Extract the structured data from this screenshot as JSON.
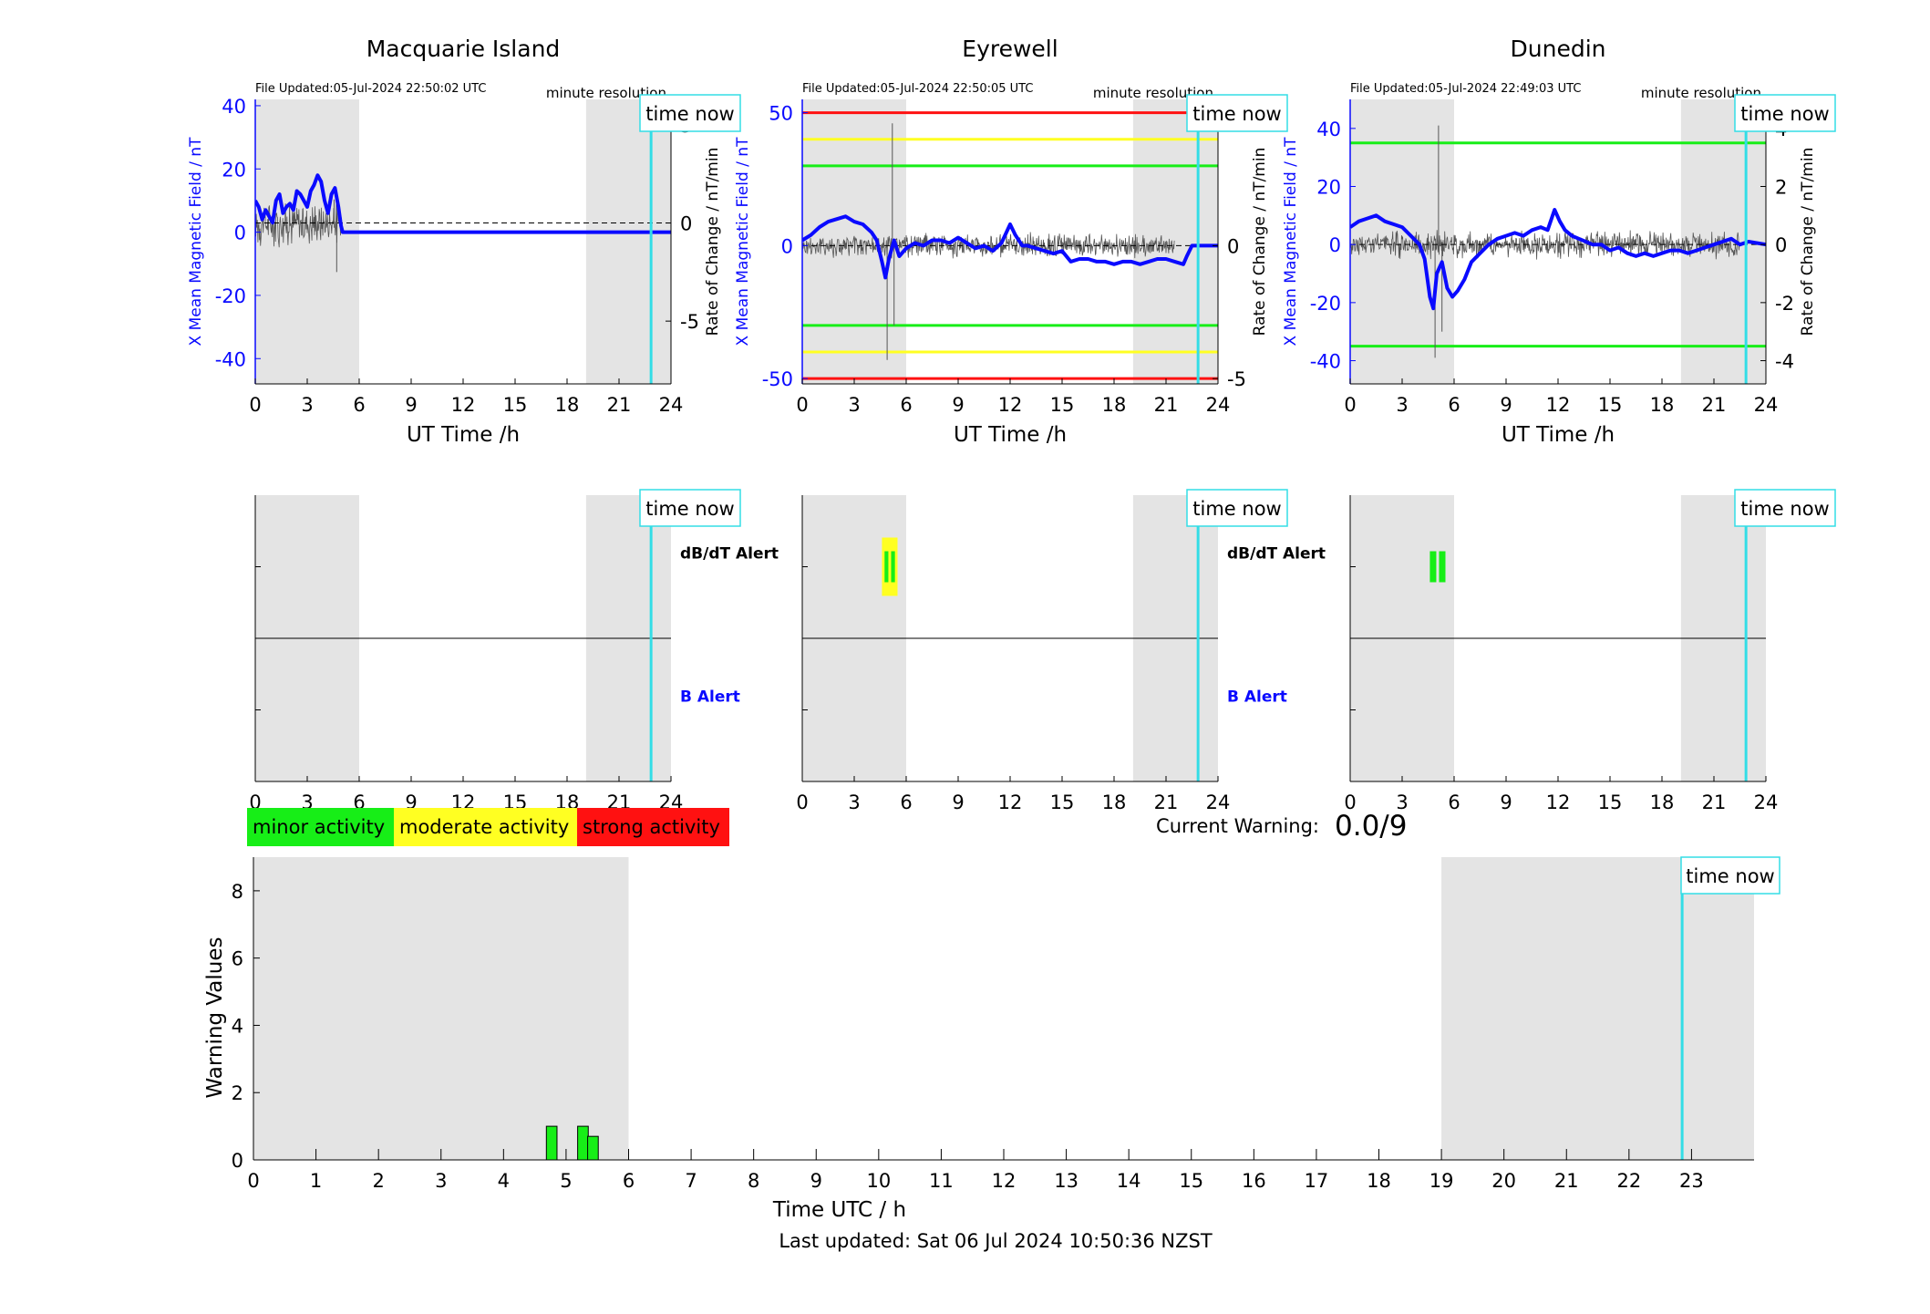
{
  "colors": {
    "x_field": "#0a0aff",
    "rate": "#555555",
    "night": "#e4e4e4",
    "time_now": "#33dde6",
    "minor": "#17ee17",
    "moderate": "#ffff22",
    "strong": "#ff1111",
    "b_alert_label": "#0a0aff"
  },
  "icons": [],
  "stations": [
    {
      "name": "Macquarie Island",
      "file_updated": "File Updated:05-Jul-2024 22:50:02 UTC",
      "resolution": "minute resolution",
      "time_now_label": "time now",
      "xlabel": "UT Time /h",
      "ylabel_left": "X Mean Magnetic Field / nT",
      "ylabel_right": "Rate of Change / nT/min",
      "ylim_left": [
        -48,
        42
      ],
      "ylim_right": [
        -8.2,
        6.3
      ],
      "yticks_left": [
        "-40",
        "-20",
        "0",
        "20",
        "40"
      ],
      "yticks_right": [
        "-5",
        "0",
        "5"
      ],
      "xticks": [
        "0",
        "3",
        "6",
        "9",
        "12",
        "15",
        "18",
        "21",
        "24"
      ],
      "night_bands": [
        [
          0,
          6
        ],
        [
          19.1,
          24
        ]
      ],
      "time_now_h": 22.85,
      "threshold_lines": [],
      "x_field_trace": [
        [
          0,
          10
        ],
        [
          0.2,
          8
        ],
        [
          0.4,
          4
        ],
        [
          0.6,
          7
        ],
        [
          0.8,
          5
        ],
        [
          1.0,
          3
        ],
        [
          1.2,
          10
        ],
        [
          1.4,
          12
        ],
        [
          1.6,
          6
        ],
        [
          1.8,
          8
        ],
        [
          2.0,
          9
        ],
        [
          2.2,
          7
        ],
        [
          2.4,
          13
        ],
        [
          2.6,
          12
        ],
        [
          2.8,
          10
        ],
        [
          3.0,
          8
        ],
        [
          3.2,
          13
        ],
        [
          3.4,
          15
        ],
        [
          3.6,
          18
        ],
        [
          3.8,
          16
        ],
        [
          4.0,
          10
        ],
        [
          4.2,
          6
        ],
        [
          4.4,
          12
        ],
        [
          4.6,
          14
        ],
        [
          4.8,
          8
        ],
        [
          4.95,
          2
        ],
        [
          5.05,
          0
        ],
        [
          24,
          0
        ]
      ],
      "rate_noise_amp": 0.9,
      "rate_noise_range": [
        0,
        5
      ],
      "rate_spikes": [
        [
          4.7,
          -2.5
        ],
        [
          4.55,
          1.2
        ]
      ],
      "alert_upper_label": "dB/dT Alert",
      "alert_lower_label": "B Alert",
      "alert_blocks": []
    },
    {
      "name": "Eyrewell",
      "file_updated": "File Updated:05-Jul-2024 22:50:05 UTC",
      "resolution": "minute resolution",
      "time_now_label": "time now",
      "xlabel": "UT Time /h",
      "ylabel_left": "X Mean Magnetic Field / nT",
      "ylabel_right": "Rate of Change / nT/min",
      "ylim_left": [
        -52,
        55
      ],
      "ylim_right": [
        -5.2,
        5.5
      ],
      "yticks_left": [
        "-50",
        "0",
        "50"
      ],
      "yticks_right": [
        "-5",
        "0",
        "5"
      ],
      "xticks": [
        "0",
        "3",
        "6",
        "9",
        "12",
        "15",
        "18",
        "21",
        "24"
      ],
      "night_bands": [
        [
          0,
          6
        ],
        [
          19.1,
          24
        ]
      ],
      "time_now_h": 22.85,
      "threshold_lines": [
        {
          "level": "strong",
          "value": 50
        },
        {
          "level": "moderate",
          "value": 40
        },
        {
          "level": "minor",
          "value": 30
        },
        {
          "level": "minor",
          "value": -30
        },
        {
          "level": "moderate",
          "value": -40
        },
        {
          "level": "strong",
          "value": -50
        }
      ],
      "x_field_trace": [
        [
          0,
          2
        ],
        [
          0.5,
          4
        ],
        [
          1.0,
          7
        ],
        [
          1.5,
          9
        ],
        [
          2.0,
          10
        ],
        [
          2.5,
          11
        ],
        [
          3.0,
          9
        ],
        [
          3.5,
          8
        ],
        [
          4.0,
          5
        ],
        [
          4.3,
          2
        ],
        [
          4.6,
          -6
        ],
        [
          4.8,
          -12
        ],
        [
          5.0,
          -5
        ],
        [
          5.3,
          2
        ],
        [
          5.6,
          -4
        ],
        [
          6.0,
          -1
        ],
        [
          6.5,
          1
        ],
        [
          7.0,
          0
        ],
        [
          7.5,
          2
        ],
        [
          8.0,
          2
        ],
        [
          8.5,
          1
        ],
        [
          9.0,
          3
        ],
        [
          9.5,
          1
        ],
        [
          10.0,
          -1
        ],
        [
          10.5,
          0
        ],
        [
          11.0,
          -2
        ],
        [
          11.5,
          1
        ],
        [
          12.0,
          8
        ],
        [
          12.3,
          4
        ],
        [
          12.7,
          0
        ],
        [
          13.0,
          0
        ],
        [
          13.5,
          -1
        ],
        [
          14.0,
          -2
        ],
        [
          14.5,
          -3
        ],
        [
          15.0,
          -2
        ],
        [
          15.5,
          -6
        ],
        [
          16.0,
          -5
        ],
        [
          16.5,
          -5
        ],
        [
          17.0,
          -6
        ],
        [
          17.5,
          -6
        ],
        [
          18.0,
          -7
        ],
        [
          18.5,
          -6
        ],
        [
          19.0,
          -6
        ],
        [
          19.5,
          -7
        ],
        [
          20.0,
          -6
        ],
        [
          20.5,
          -5
        ],
        [
          21.0,
          -5
        ],
        [
          21.5,
          -6
        ],
        [
          22.0,
          -7
        ],
        [
          22.2,
          -4
        ],
        [
          22.5,
          0
        ],
        [
          24,
          0
        ]
      ],
      "rate_noise_amp": 0.35,
      "rate_noise_range": [
        0,
        21.5
      ],
      "rate_spikes": [
        [
          5.2,
          4.6
        ],
        [
          4.9,
          -4.3
        ],
        [
          5.3,
          -3.0
        ]
      ],
      "alert_upper_label": "dB/dT Alert",
      "alert_lower_label": "B Alert",
      "alert_blocks": [
        {
          "start_h": 4.6,
          "end_h": 5.5,
          "level": "moderate",
          "band": "upper"
        },
        {
          "start_h": 4.75,
          "end_h": 5.35,
          "level": "minor",
          "band": "upper"
        }
      ]
    },
    {
      "name": "Dunedin",
      "file_updated": "File Updated:05-Jul-2024 22:49:03 UTC",
      "resolution": "minute resolution",
      "time_now_label": "time now",
      "xlabel": "UT Time /h",
      "ylabel_left": "X Mean Magnetic Field / nT",
      "ylabel_right": "Rate of Change / nT/min",
      "ylim_left": [
        -48,
        50
      ],
      "ylim_right": [
        -4.8,
        5.0
      ],
      "yticks_left": [
        "-40",
        "-20",
        "0",
        "20",
        "40"
      ],
      "yticks_right": [
        "-4",
        "-2",
        "0",
        "2",
        "4"
      ],
      "xticks": [
        "0",
        "3",
        "6",
        "9",
        "12",
        "15",
        "18",
        "21",
        "24"
      ],
      "night_bands": [
        [
          0,
          6
        ],
        [
          19.1,
          24
        ]
      ],
      "time_now_h": 22.85,
      "threshold_lines": [
        {
          "level": "minor",
          "value": 35
        },
        {
          "level": "minor",
          "value": -35
        }
      ],
      "x_field_trace": [
        [
          0,
          6
        ],
        [
          0.5,
          8
        ],
        [
          1.0,
          9
        ],
        [
          1.5,
          10
        ],
        [
          2.0,
          8
        ],
        [
          2.5,
          7
        ],
        [
          3.0,
          6
        ],
        [
          3.5,
          3
        ],
        [
          4.0,
          0
        ],
        [
          4.3,
          -5
        ],
        [
          4.6,
          -18
        ],
        [
          4.8,
          -22
        ],
        [
          5.0,
          -10
        ],
        [
          5.3,
          -6
        ],
        [
          5.6,
          -15
        ],
        [
          5.9,
          -18
        ],
        [
          6.2,
          -16
        ],
        [
          6.6,
          -12
        ],
        [
          7.0,
          -6
        ],
        [
          7.5,
          -3
        ],
        [
          8.0,
          0
        ],
        [
          8.5,
          2
        ],
        [
          9.0,
          3
        ],
        [
          9.5,
          4
        ],
        [
          10.0,
          3
        ],
        [
          10.5,
          5
        ],
        [
          11.0,
          6
        ],
        [
          11.4,
          5
        ],
        [
          11.8,
          12
        ],
        [
          12.1,
          8
        ],
        [
          12.4,
          5
        ],
        [
          12.8,
          3
        ],
        [
          13.2,
          2
        ],
        [
          13.6,
          1
        ],
        [
          14.0,
          0
        ],
        [
          14.5,
          0
        ],
        [
          15.0,
          -2
        ],
        [
          15.5,
          -1
        ],
        [
          16.0,
          -3
        ],
        [
          16.5,
          -4
        ],
        [
          17.0,
          -3
        ],
        [
          17.5,
          -4
        ],
        [
          18.0,
          -3
        ],
        [
          18.5,
          -2
        ],
        [
          19.0,
          -2
        ],
        [
          19.5,
          -3
        ],
        [
          20.0,
          -2
        ],
        [
          20.5,
          -1
        ],
        [
          21.0,
          0
        ],
        [
          21.5,
          1
        ],
        [
          22.0,
          2
        ],
        [
          22.5,
          0
        ],
        [
          23.0,
          1
        ],
        [
          24,
          0
        ]
      ],
      "rate_noise_amp": 0.35,
      "rate_noise_range": [
        0,
        22.5
      ],
      "rate_spikes": [
        [
          5.1,
          4.1
        ],
        [
          4.9,
          -3.9
        ],
        [
          5.3,
          -3.0
        ]
      ],
      "alert_upper_label": "",
      "alert_lower_label": "",
      "alert_blocks": [
        {
          "start_h": 4.6,
          "end_h": 5.5,
          "level": "minor",
          "band": "upper"
        }
      ]
    }
  ],
  "legend": [
    {
      "level": "minor",
      "label": "minor activity"
    },
    {
      "level": "moderate",
      "label": "moderate activity"
    },
    {
      "level": "strong",
      "label": "strong activity"
    }
  ],
  "current_warning": {
    "label": "Current Warning:",
    "value": "0.0/9"
  },
  "chart_data": {
    "type": "bar",
    "xlabel": "Time UTC / h",
    "ylabel": "Warning Values",
    "xlim": [
      0,
      24
    ],
    "ylim": [
      0,
      9
    ],
    "yticks": [
      "0",
      "2",
      "4",
      "6",
      "8"
    ],
    "xticks": [
      "0",
      "1",
      "2",
      "3",
      "4",
      "5",
      "6",
      "7",
      "8",
      "9",
      "10",
      "11",
      "12",
      "13",
      "14",
      "15",
      "16",
      "17",
      "18",
      "19",
      "20",
      "21",
      "22",
      "23"
    ],
    "night_bands": [
      [
        0,
        6
      ],
      [
        19,
        24
      ]
    ],
    "time_now_h": 22.85,
    "time_now_label": "time now",
    "bars": [
      {
        "x": 4.77,
        "value": 1.0
      },
      {
        "x": 5.27,
        "value": 1.0
      },
      {
        "x": 5.43,
        "value": 0.7
      }
    ]
  },
  "last_updated": "Last updated: Sat 06 Jul 2024 10:50:36 NZST"
}
